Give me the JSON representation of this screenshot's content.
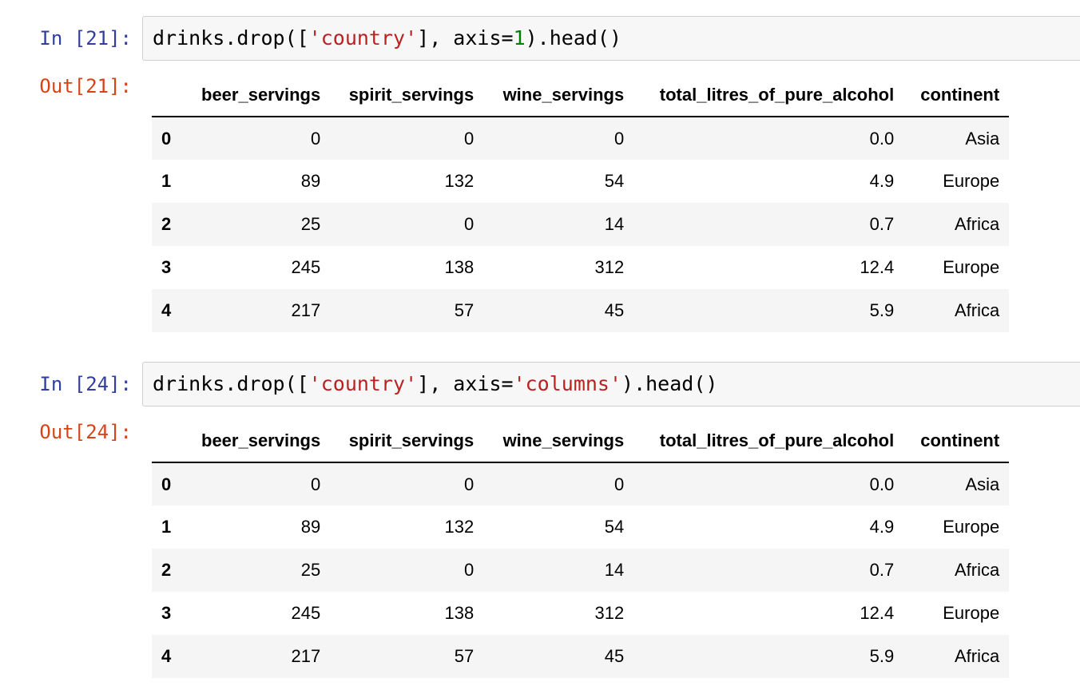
{
  "cells": [
    {
      "input_prompt": "In [21]:",
      "code": [
        "drinks.drop([",
        "'country'",
        "], axis=",
        "1",
        ").head()"
      ],
      "output_prompt": "Out[21]:",
      "table": {
        "columns": [
          "beer_servings",
          "spirit_servings",
          "wine_servings",
          "total_litres_of_pure_alcohol",
          "continent"
        ],
        "rows": [
          {
            "index": "0",
            "values": [
              "0",
              "0",
              "0",
              "0.0",
              "Asia"
            ]
          },
          {
            "index": "1",
            "values": [
              "89",
              "132",
              "54",
              "4.9",
              "Europe"
            ]
          },
          {
            "index": "2",
            "values": [
              "25",
              "0",
              "14",
              "0.7",
              "Africa"
            ]
          },
          {
            "index": "3",
            "values": [
              "245",
              "138",
              "312",
              "12.4",
              "Europe"
            ]
          },
          {
            "index": "4",
            "values": [
              "217",
              "57",
              "45",
              "5.9",
              "Africa"
            ]
          }
        ]
      }
    },
    {
      "input_prompt": "In [24]:",
      "code": [
        "drinks.drop([",
        "'country'",
        "], axis=",
        "'columns'",
        ").head()"
      ],
      "output_prompt": "Out[24]:",
      "table": {
        "columns": [
          "beer_servings",
          "spirit_servings",
          "wine_servings",
          "total_litres_of_pure_alcohol",
          "continent"
        ],
        "rows": [
          {
            "index": "0",
            "values": [
              "0",
              "0",
              "0",
              "0.0",
              "Asia"
            ]
          },
          {
            "index": "1",
            "values": [
              "89",
              "132",
              "54",
              "4.9",
              "Europe"
            ]
          },
          {
            "index": "2",
            "values": [
              "25",
              "0",
              "14",
              "0.7",
              "Africa"
            ]
          },
          {
            "index": "3",
            "values": [
              "245",
              "138",
              "312",
              "12.4",
              "Europe"
            ]
          },
          {
            "index": "4",
            "values": [
              "217",
              "57",
              "45",
              "5.9",
              "Africa"
            ]
          }
        ]
      }
    }
  ]
}
